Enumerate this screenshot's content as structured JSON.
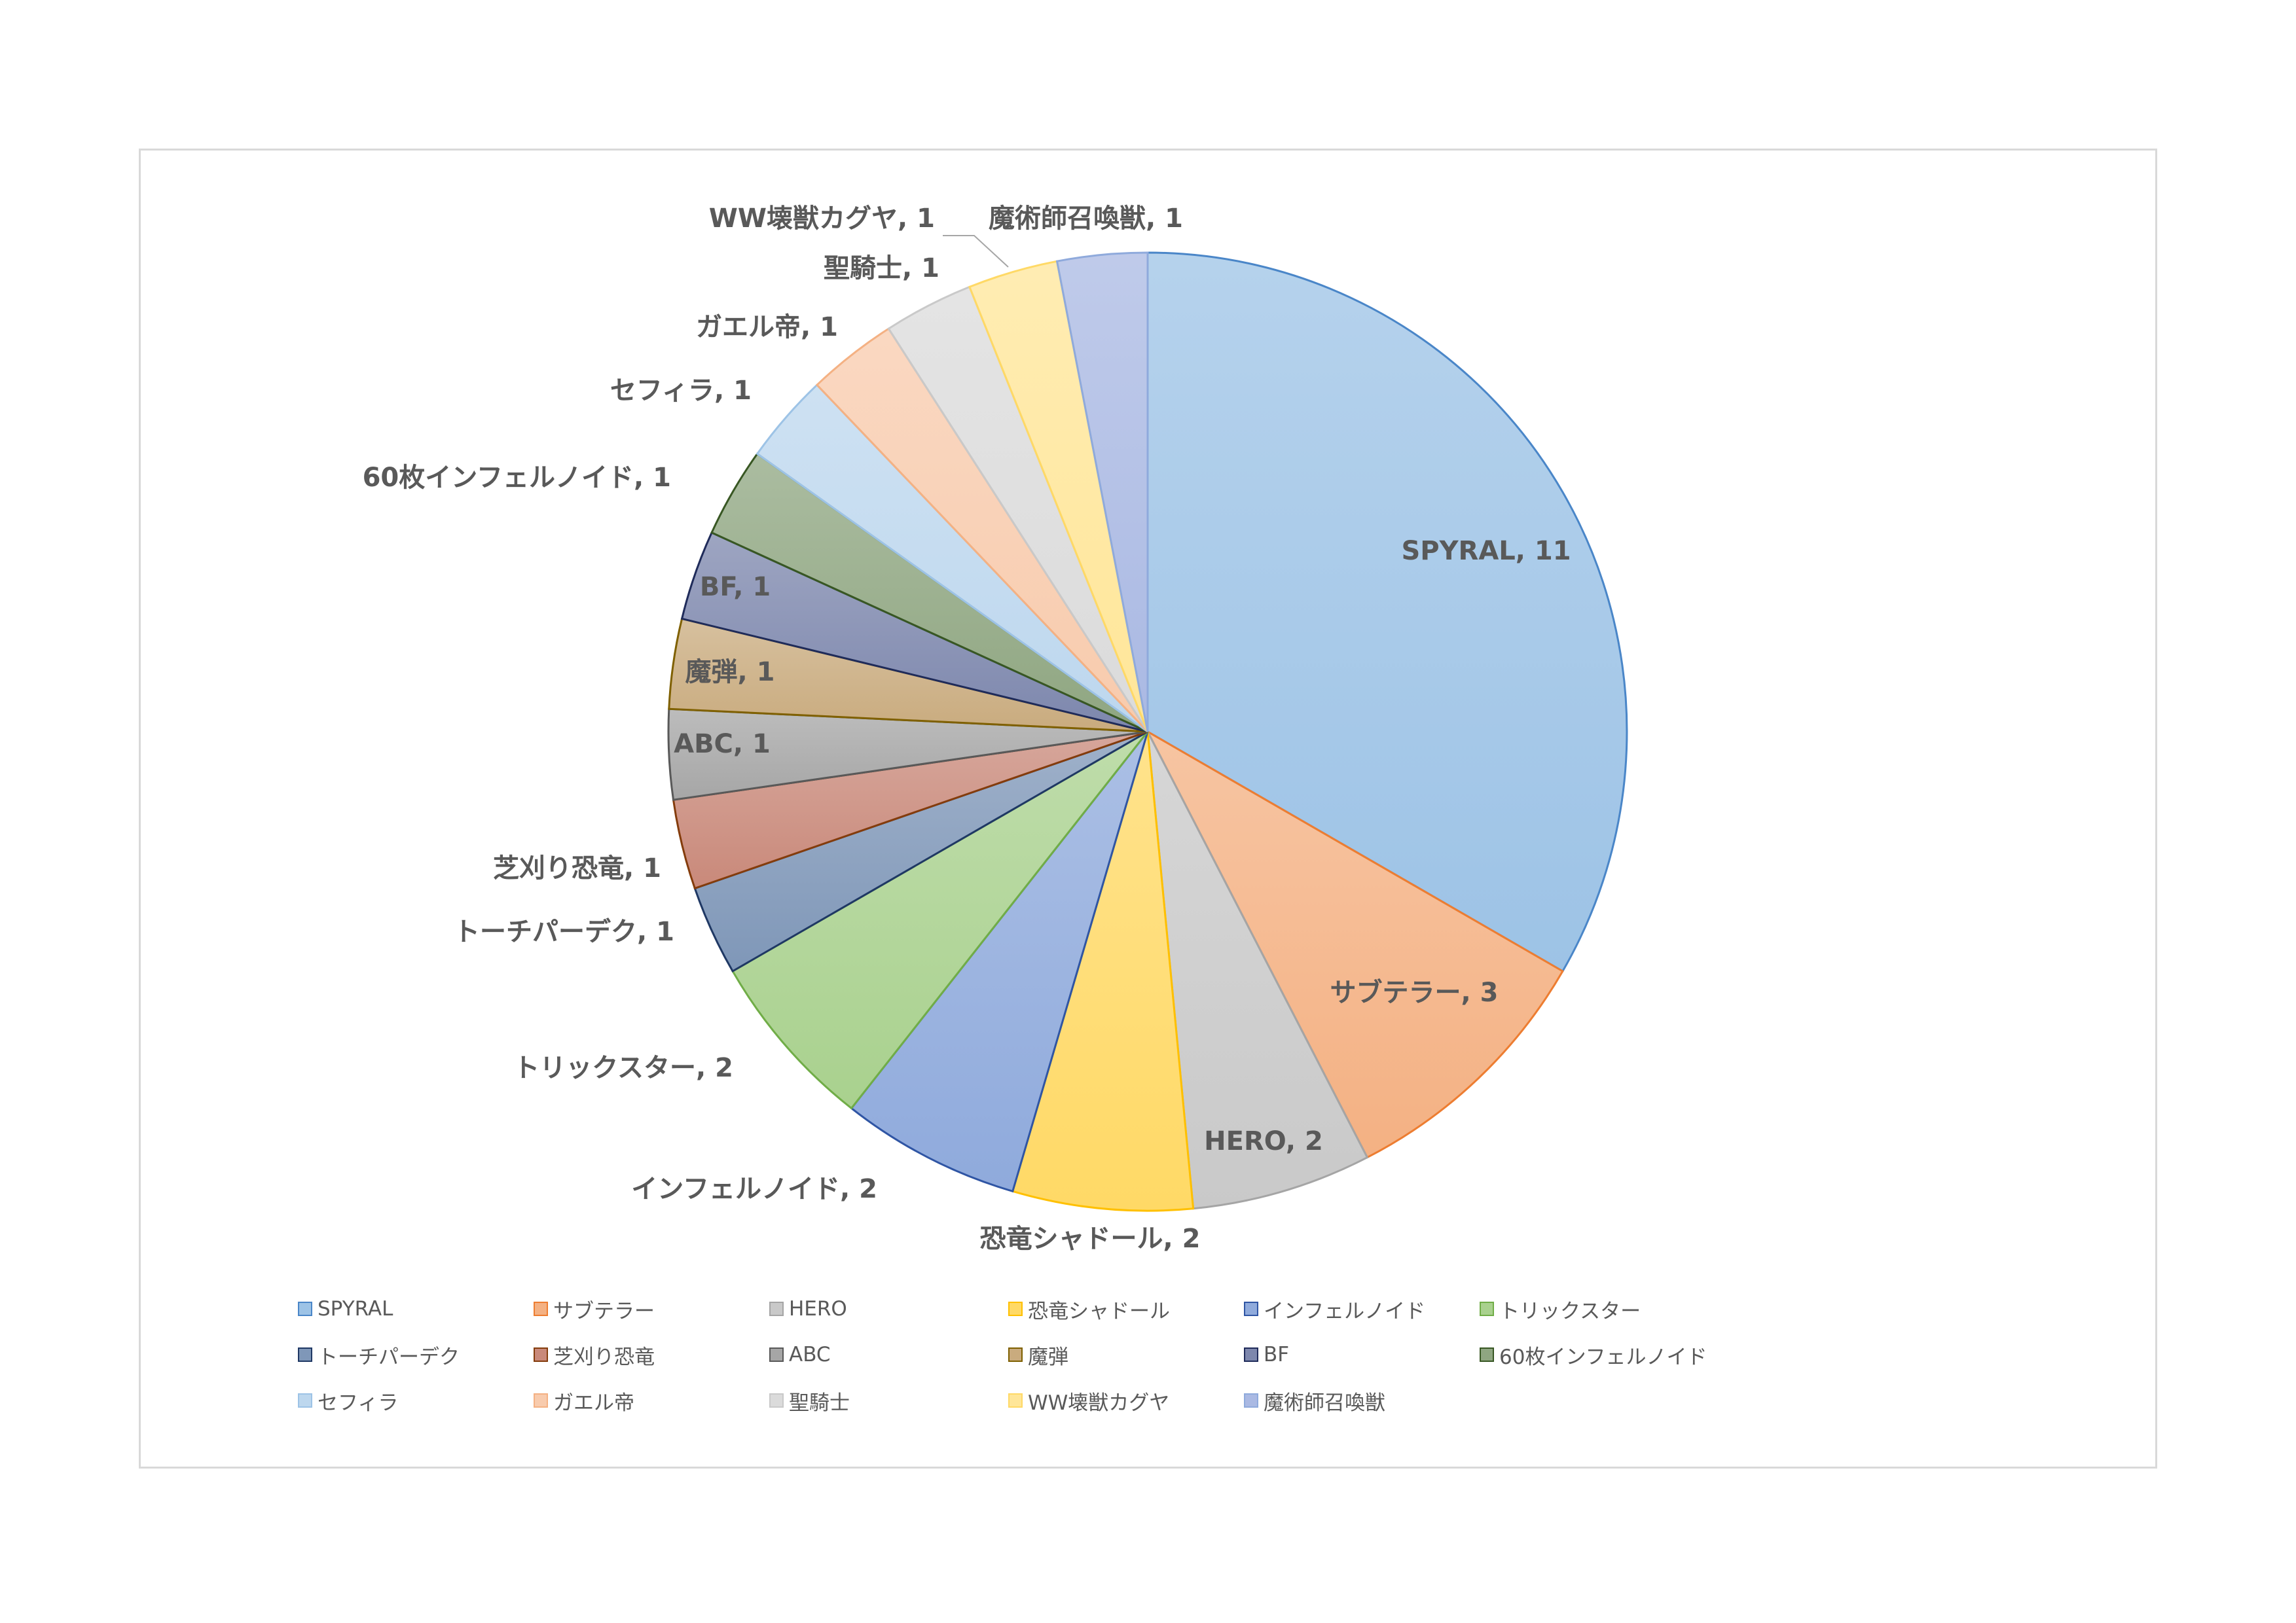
{
  "chart_data": {
    "type": "pie",
    "title": "",
    "slices": [
      {
        "label": "SPYRAL",
        "value": 11,
        "color": "#9dc3e6",
        "edge": "#4a86c8"
      },
      {
        "label": "サブテラー",
        "value": 3,
        "color": "#f4b183",
        "edge": "#ed7d31"
      },
      {
        "label": "HERO",
        "value": 2,
        "color": "#c9c9c9",
        "edge": "#a5a5a5"
      },
      {
        "label": "恐竜シャドール",
        "value": 2,
        "color": "#ffd966",
        "edge": "#ffc000"
      },
      {
        "label": "インフェルノイド",
        "value": 2,
        "color": "#8faadc",
        "edge": "#2f55a4"
      },
      {
        "label": "トリックスター",
        "value": 2,
        "color": "#a9d18e",
        "edge": "#70ad47"
      },
      {
        "label": "トーチパーデク",
        "value": 1,
        "color": "#7f97b8",
        "edge": "#1f3864"
      },
      {
        "label": "芝刈り恐竜",
        "value": 1,
        "color": "#c9897a",
        "edge": "#843c0c"
      },
      {
        "label": "ABC",
        "value": 1,
        "color": "#a6a6a6",
        "edge": "#595959"
      },
      {
        "label": "魔弾",
        "value": 1,
        "color": "#c9ab7e",
        "edge": "#7f6000"
      },
      {
        "label": "BF",
        "value": 1,
        "color": "#7d87ad",
        "edge": "#1f2b5a"
      },
      {
        "label": "60枚インフェルノイド",
        "value": 1,
        "color": "#8fa681",
        "edge": "#385723"
      },
      {
        "label": "セフィラ",
        "value": 1,
        "color": "#bdd7ee",
        "edge": "#9dc3e6"
      },
      {
        "label": "ガエル帝",
        "value": 1,
        "color": "#f8cbad",
        "edge": "#f4b183"
      },
      {
        "label": "聖騎士",
        "value": 1,
        "color": "#dbdbdb",
        "edge": "#c9c9c9"
      },
      {
        "label": "WW壊獣カグヤ",
        "value": 1,
        "color": "#ffe699",
        "edge": "#ffd966"
      },
      {
        "label": "魔術師召喚獣",
        "value": 1,
        "color": "#aab9e3",
        "edge": "#8faadc"
      }
    ],
    "data_labels": [
      "SPYRAL, 11",
      "サブテラー, 3",
      "HERO, 2",
      "恐竜シャドール, 2",
      "インフェルノイド, 2",
      "トリックスター, 2",
      "トーチパーデク, 1",
      "芝刈り恐竜, 1",
      "ABC, 1",
      "魔弾, 1",
      "BF, 1",
      "60枚インフェルノイド, 1",
      "セフィラ, 1",
      "ガエル帝, 1",
      "聖騎士, 1",
      "WW壊獣カグヤ, 1",
      "魔術師召喚獣, 1"
    ],
    "legend": {
      "position": "bottom",
      "entries": [
        "SPYRAL",
        "サブテラー",
        "HERO",
        "恐竜シャドール",
        "インフェルノイド",
        "トリックスター",
        "トーチパーデク",
        "芝刈り恐竜",
        "ABC",
        "魔弾",
        "BF",
        "60枚インフェルノイド",
        "セフィラ",
        "ガエル帝",
        "聖騎士",
        "WW壊獣カグヤ",
        "魔術師召喚獣"
      ]
    }
  }
}
